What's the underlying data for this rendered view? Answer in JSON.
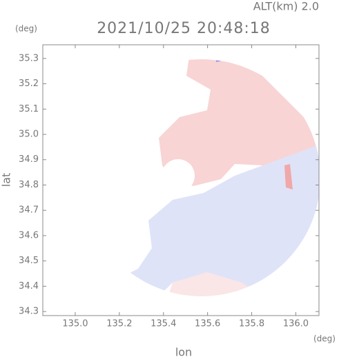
{
  "chart_data": {
    "type": "map",
    "title": "2021/10/25 20:48:18",
    "subtitle": "ALT(km) 2.0",
    "x_label": "lon",
    "y_label": "lat",
    "x_unit": "(deg)",
    "y_unit": "(deg)",
    "xlim": [
      134.853,
      136.105
    ],
    "xticks": [
      {
        "value": 135,
        "label": "135.0"
      },
      135.2,
      135.4,
      135.6,
      135.8,
      {
        "value": 136,
        "label": "136.0"
      }
    ],
    "ylim": [
      34.284,
      35.354
    ],
    "yticks": [
      34.3,
      34.4,
      34.5,
      34.6,
      34.7,
      34.8,
      34.9,
      {
        "value": 35,
        "label": "35.0"
      },
      35.1,
      35.2,
      35.3
    ]
  }
}
